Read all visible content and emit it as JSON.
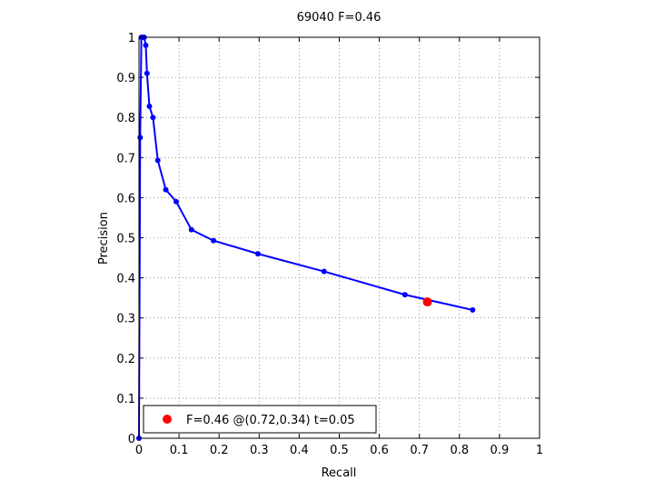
{
  "chart_data": {
    "type": "line",
    "title": "69040 F=0.46",
    "xlabel": "Recall",
    "ylabel": "Precision",
    "xlim": [
      0,
      1
    ],
    "ylim": [
      0,
      1
    ],
    "x_ticks": [
      0,
      0.1,
      0.2,
      0.3,
      0.4,
      0.5,
      0.6,
      0.7,
      0.8,
      0.9,
      1
    ],
    "x_tick_labels": [
      "0",
      "0.1",
      "0.2",
      "0.3",
      "0.4",
      "0.5",
      "0.6",
      "0.7",
      "0.8",
      "0.9",
      "1"
    ],
    "y_ticks": [
      0,
      0.1,
      0.2,
      0.3,
      0.4,
      0.5,
      0.6,
      0.7,
      0.8,
      0.9,
      1
    ],
    "y_tick_labels": [
      "0",
      "0.1",
      "0.2",
      "0.3",
      "0.4",
      "0.5",
      "0.6",
      "0.7",
      "0.8",
      "0.9",
      "1"
    ],
    "grid": true,
    "grid_style": "dotted",
    "series": [
      {
        "color": "#0000ff",
        "marker": "dot",
        "x": [
          0,
          0.003,
          0.006,
          0.01,
          0.013,
          0.017,
          0.02,
          0.026,
          0.035,
          0.047,
          0.067,
          0.093,
          0.131,
          0.186,
          0.297,
          0.462,
          0.664,
          0.833
        ],
        "y": [
          0,
          0.75,
          1.0,
          1.0,
          1.0,
          0.98,
          0.91,
          0.828,
          0.8,
          0.693,
          0.62,
          0.59,
          0.52,
          0.493,
          0.46,
          0.416,
          0.358,
          0.32
        ]
      }
    ],
    "highlight": {
      "x": 0.72,
      "y": 0.34,
      "color": "#ff0000",
      "label": "F=0.46 @(0.72,0.34) t=0.05"
    },
    "legend": {
      "placement": "bottom-left",
      "entries": [
        "F=0.46 @(0.72,0.34) t=0.05"
      ]
    }
  }
}
